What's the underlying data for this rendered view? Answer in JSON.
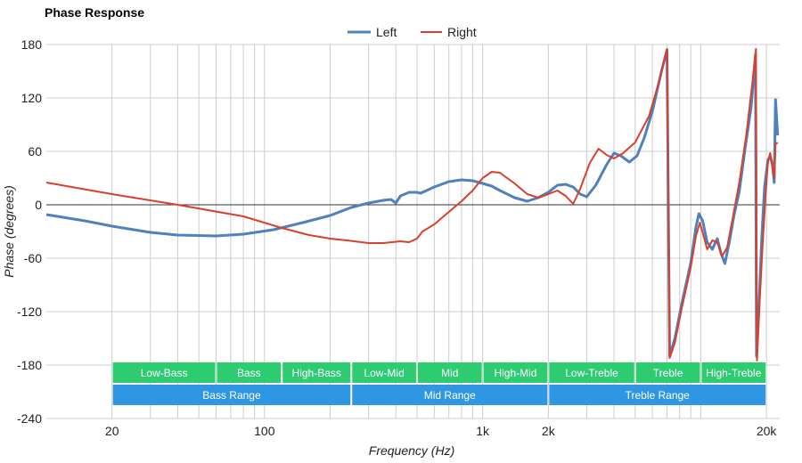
{
  "chart_data": {
    "type": "line",
    "title": "Phase Response",
    "xlabel": "Frequency (Hz)",
    "ylabel": "Phase (degrees)",
    "x_scale": "log",
    "xlim": [
      10,
      23000
    ],
    "ylim": [
      -240,
      180
    ],
    "y_ticks": [
      180,
      120,
      60,
      0,
      -60,
      -120,
      -180,
      -240
    ],
    "x_ticks": [
      {
        "value": 20,
        "label": "20"
      },
      {
        "value": 100,
        "label": "100"
      },
      {
        "value": 1000,
        "label": "1k"
      },
      {
        "value": 2000,
        "label": "2k"
      },
      {
        "value": 20000,
        "label": "20k"
      }
    ],
    "grid": true,
    "legend_position": "top-center",
    "series": [
      {
        "name": "Left",
        "color": "#4f81bd",
        "points": [
          [
            10,
            -11
          ],
          [
            15,
            -18
          ],
          [
            20,
            -24
          ],
          [
            30,
            -31
          ],
          [
            40,
            -34
          ],
          [
            60,
            -35
          ],
          [
            80,
            -33
          ],
          [
            110,
            -28
          ],
          [
            150,
            -20
          ],
          [
            200,
            -12
          ],
          [
            250,
            -3
          ],
          [
            300,
            2
          ],
          [
            350,
            5
          ],
          [
            380,
            6
          ],
          [
            400,
            2
          ],
          [
            420,
            10
          ],
          [
            460,
            14
          ],
          [
            500,
            14
          ],
          [
            520,
            13
          ],
          [
            600,
            20
          ],
          [
            700,
            26
          ],
          [
            800,
            28
          ],
          [
            900,
            27
          ],
          [
            1000,
            24
          ],
          [
            1100,
            21
          ],
          [
            1200,
            16
          ],
          [
            1400,
            8
          ],
          [
            1600,
            4
          ],
          [
            1800,
            8
          ],
          [
            2000,
            14
          ],
          [
            2200,
            22
          ],
          [
            2400,
            23
          ],
          [
            2600,
            20
          ],
          [
            2800,
            12
          ],
          [
            3000,
            9
          ],
          [
            3300,
            22
          ],
          [
            3700,
            45
          ],
          [
            4000,
            58
          ],
          [
            4300,
            55
          ],
          [
            4700,
            48
          ],
          [
            5100,
            55
          ],
          [
            5500,
            75
          ],
          [
            6000,
            105
          ],
          [
            6600,
            150
          ],
          [
            7000,
            174
          ],
          [
            7200,
            -170
          ],
          [
            7600,
            -150
          ],
          [
            8200,
            -110
          ],
          [
            9000,
            -65
          ],
          [
            9500,
            -25
          ],
          [
            9800,
            -10
          ],
          [
            10200,
            -18
          ],
          [
            10700,
            -42
          ],
          [
            11300,
            -50
          ],
          [
            11900,
            -38
          ],
          [
            12400,
            -55
          ],
          [
            12900,
            -66
          ],
          [
            13500,
            -42
          ],
          [
            14200,
            -12
          ],
          [
            15000,
            15
          ],
          [
            16000,
            65
          ],
          [
            17000,
            110
          ],
          [
            17800,
            168
          ],
          [
            18000,
            -170
          ],
          [
            18500,
            -110
          ],
          [
            19000,
            -40
          ],
          [
            19600,
            20
          ],
          [
            20300,
            50
          ],
          [
            20800,
            55
          ],
          [
            21300,
            45
          ],
          [
            21700,
            25
          ],
          [
            22000,
            118
          ],
          [
            22500,
            78
          ]
        ]
      },
      {
        "name": "Right",
        "color": "#d9402b",
        "points": [
          [
            10,
            25
          ],
          [
            20,
            12
          ],
          [
            40,
            0
          ],
          [
            80,
            -13
          ],
          [
            120,
            -26
          ],
          [
            160,
            -34
          ],
          [
            200,
            -38
          ],
          [
            240,
            -40
          ],
          [
            300,
            -43
          ],
          [
            350,
            -43
          ],
          [
            420,
            -41
          ],
          [
            460,
            -42
          ],
          [
            500,
            -38
          ],
          [
            530,
            -30
          ],
          [
            600,
            -22
          ],
          [
            700,
            -8
          ],
          [
            800,
            4
          ],
          [
            900,
            16
          ],
          [
            1000,
            30
          ],
          [
            1100,
            37
          ],
          [
            1200,
            36
          ],
          [
            1400,
            24
          ],
          [
            1600,
            12
          ],
          [
            1800,
            8
          ],
          [
            2000,
            12
          ],
          [
            2200,
            16
          ],
          [
            2400,
            10
          ],
          [
            2600,
            1
          ],
          [
            2800,
            18
          ],
          [
            3100,
            47
          ],
          [
            3400,
            63
          ],
          [
            3700,
            56
          ],
          [
            4000,
            52
          ],
          [
            4400,
            58
          ],
          [
            5000,
            70
          ],
          [
            5800,
            100
          ],
          [
            6500,
            142
          ],
          [
            7000,
            175
          ],
          [
            7200,
            -172
          ],
          [
            7600,
            -155
          ],
          [
            8200,
            -115
          ],
          [
            9000,
            -70
          ],
          [
            9500,
            -35
          ],
          [
            9900,
            -20
          ],
          [
            10300,
            -35
          ],
          [
            10700,
            -50
          ],
          [
            11300,
            -40
          ],
          [
            11900,
            -42
          ],
          [
            12500,
            -58
          ],
          [
            13200,
            -48
          ],
          [
            14000,
            -15
          ],
          [
            15000,
            25
          ],
          [
            16200,
            80
          ],
          [
            17200,
            135
          ],
          [
            17900,
            175
          ],
          [
            18100,
            -175
          ],
          [
            18600,
            -110
          ],
          [
            19200,
            -45
          ],
          [
            19800,
            10
          ],
          [
            20300,
            48
          ],
          [
            20800,
            58
          ],
          [
            21300,
            42
          ],
          [
            21700,
            30
          ],
          [
            22000,
            68
          ],
          [
            22500,
            70
          ]
        ]
      }
    ],
    "bands": [
      {
        "label": "Low-Bass",
        "from": 20,
        "to": 60,
        "row": 1
      },
      {
        "label": "Bass",
        "from": 60,
        "to": 120,
        "row": 1
      },
      {
        "label": "High-Bass",
        "from": 120,
        "to": 250,
        "row": 1
      },
      {
        "label": "Low-Mid",
        "from": 250,
        "to": 500,
        "row": 1
      },
      {
        "label": "Mid",
        "from": 500,
        "to": 1000,
        "row": 1
      },
      {
        "label": "High-Mid",
        "from": 1000,
        "to": 2000,
        "row": 1
      },
      {
        "label": "Low-Treble",
        "from": 2000,
        "to": 5000,
        "row": 1
      },
      {
        "label": "Treble",
        "from": 5000,
        "to": 10000,
        "row": 1
      },
      {
        "label": "High-Treble",
        "from": 10000,
        "to": 20000,
        "row": 1
      },
      {
        "label": "Bass Range",
        "from": 20,
        "to": 250,
        "row": 2
      },
      {
        "label": "Mid Range",
        "from": 250,
        "to": 2000,
        "row": 2
      },
      {
        "label": "Treble Range",
        "from": 2000,
        "to": 20000,
        "row": 2
      }
    ],
    "band_colors": {
      "row1": "#2ecc71",
      "row2": "#2f96e4"
    }
  }
}
